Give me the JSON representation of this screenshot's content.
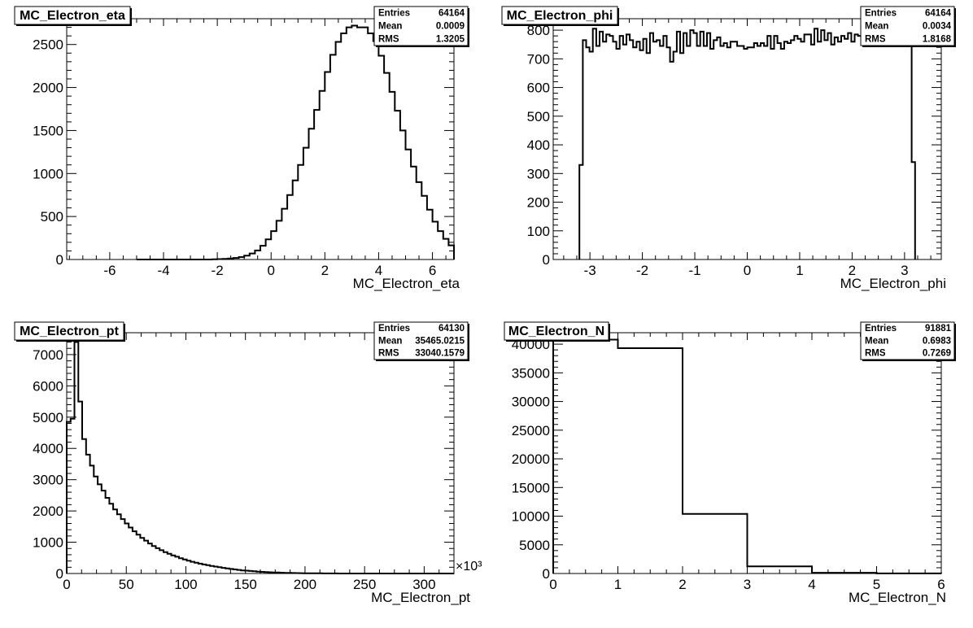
{
  "chart_data": [
    {
      "type": "bar",
      "title": "MC_Electron_eta",
      "xlabel": "MC_Electron_eta",
      "ylabel": "",
      "xlim": [
        -7.6,
        6.8
      ],
      "ylim": [
        0,
        2800
      ],
      "xticks": [
        -6,
        -4,
        -2,
        0,
        2,
        4,
        6
      ],
      "yticks": [
        0,
        500,
        1000,
        1500,
        2000,
        2500
      ],
      "stats": {
        "Entries": "64164",
        "Mean": "0.0009",
        "RMS": "1.3205"
      },
      "bin_start": -5.0,
      "bin_width": 0.2,
      "values": [
        0,
        0,
        0,
        0,
        0,
        0,
        0,
        0,
        0,
        0,
        0,
        0,
        0,
        0,
        2,
        5,
        8,
        12,
        18,
        28,
        45,
        70,
        105,
        160,
        235,
        330,
        450,
        590,
        750,
        920,
        1100,
        1300,
        1520,
        1740,
        1960,
        2180,
        2380,
        2530,
        2630,
        2700,
        2720,
        2700,
        2700,
        2630,
        2540,
        2370,
        2170,
        1950,
        1730,
        1500,
        1280,
        1080,
        900,
        740,
        580,
        440,
        330,
        240,
        165,
        110,
        75,
        48,
        30,
        18,
        10,
        5,
        3,
        2,
        1,
        0,
        0,
        0,
        0,
        0,
        0,
        0,
        0,
        0,
        0,
        0,
        0,
        0,
        0,
        0,
        0,
        0,
        0,
        0,
        0,
        0,
        0,
        0,
        0,
        0,
        0,
        0,
        0,
        0,
        0,
        0,
        0,
        0
      ]
    },
    {
      "type": "bar",
      "title": "MC_Electron_phi",
      "xlabel": "MC_Electron_phi",
      "ylabel": "",
      "xlim": [
        -3.7,
        3.7
      ],
      "ylim": [
        0,
        840
      ],
      "xticks": [
        -3,
        -2,
        -1,
        0,
        1,
        2,
        3
      ],
      "yticks": [
        0,
        100,
        200,
        300,
        400,
        500,
        600,
        700,
        800
      ],
      "stats": {
        "Entries": "64164",
        "Mean": "0.0034",
        "RMS": "1.8168"
      },
      "bin_start": -3.2,
      "bin_width": 0.064,
      "values": [
        330,
        765,
        740,
        725,
        805,
        745,
        795,
        760,
        785,
        780,
        760,
        735,
        780,
        750,
        785,
        765,
        740,
        760,
        730,
        770,
        720,
        790,
        760,
        765,
        745,
        780,
        740,
        690,
        725,
        795,
        720,
        790,
        745,
        800,
        790,
        745,
        795,
        745,
        790,
        735,
        765,
        775,
        745,
        755,
        740,
        760,
        760,
        745,
        745,
        735,
        740,
        740,
        755,
        745,
        755,
        745,
        780,
        735,
        780,
        755,
        735,
        760,
        755,
        765,
        780,
        770,
        760,
        785,
        785,
        750,
        805,
        760,
        800,
        765,
        790,
        750,
        775,
        760,
        780,
        770,
        790,
        760,
        785,
        780,
        765,
        745,
        780,
        755,
        790,
        760,
        770,
        750,
        790,
        770,
        780,
        760,
        780,
        765,
        750,
        340
      ]
    },
    {
      "type": "bar",
      "title": "MC_Electron_pt",
      "xlabel": "MC_Electron_pt",
      "ylabel": "",
      "x_multiplier": "×10³",
      "xlim": [
        0,
        325
      ],
      "ylim": [
        0,
        7700
      ],
      "xticks": [
        0,
        50,
        100,
        150,
        200,
        250,
        300
      ],
      "yticks": [
        0,
        1000,
        2000,
        3000,
        4000,
        5000,
        6000,
        7000
      ],
      "stats": {
        "Entries": "64130",
        "Mean": "35465.0215",
        "RMS": "33040.1579"
      },
      "bin_start": 0,
      "bin_width": 3.25,
      "values": [
        4850,
        4950,
        7400,
        5500,
        4300,
        3800,
        3450,
        3100,
        2850,
        2650,
        2420,
        2230,
        2050,
        1890,
        1740,
        1600,
        1470,
        1350,
        1240,
        1140,
        1050,
        960,
        880,
        810,
        745,
        685,
        630,
        580,
        535,
        490,
        450,
        410,
        375,
        345,
        315,
        290,
        265,
        240,
        220,
        200,
        180,
        160,
        145,
        130,
        115,
        100,
        90,
        80,
        70,
        60,
        52,
        45,
        40,
        34,
        30,
        26,
        22,
        19,
        16,
        13,
        11,
        9,
        7,
        6,
        5,
        4,
        3,
        3,
        2,
        2,
        1,
        1,
        1,
        1,
        0,
        0,
        0,
        0,
        0,
        0,
        0,
        0,
        0,
        0,
        0,
        0,
        0,
        0,
        0,
        0,
        0,
        0,
        0,
        0,
        0,
        0,
        0,
        0,
        0,
        0
      ]
    },
    {
      "type": "bar",
      "title": "MC_Electron_N",
      "xlabel": "MC_Electron_N",
      "ylabel": "",
      "xlim": [
        0,
        6
      ],
      "ylim": [
        0,
        42000
      ],
      "xticks": [
        0,
        1,
        2,
        3,
        4,
        5,
        6
      ],
      "yticks": [
        0,
        5000,
        10000,
        15000,
        20000,
        25000,
        30000,
        35000,
        40000
      ],
      "stats": {
        "Entries": "91881",
        "Mean": "0.6983",
        "RMS": "0.7269"
      },
      "bin_start": 0,
      "bin_width": 1,
      "values": [
        40800,
        39300,
        10400,
        1250,
        130,
        10
      ]
    }
  ]
}
